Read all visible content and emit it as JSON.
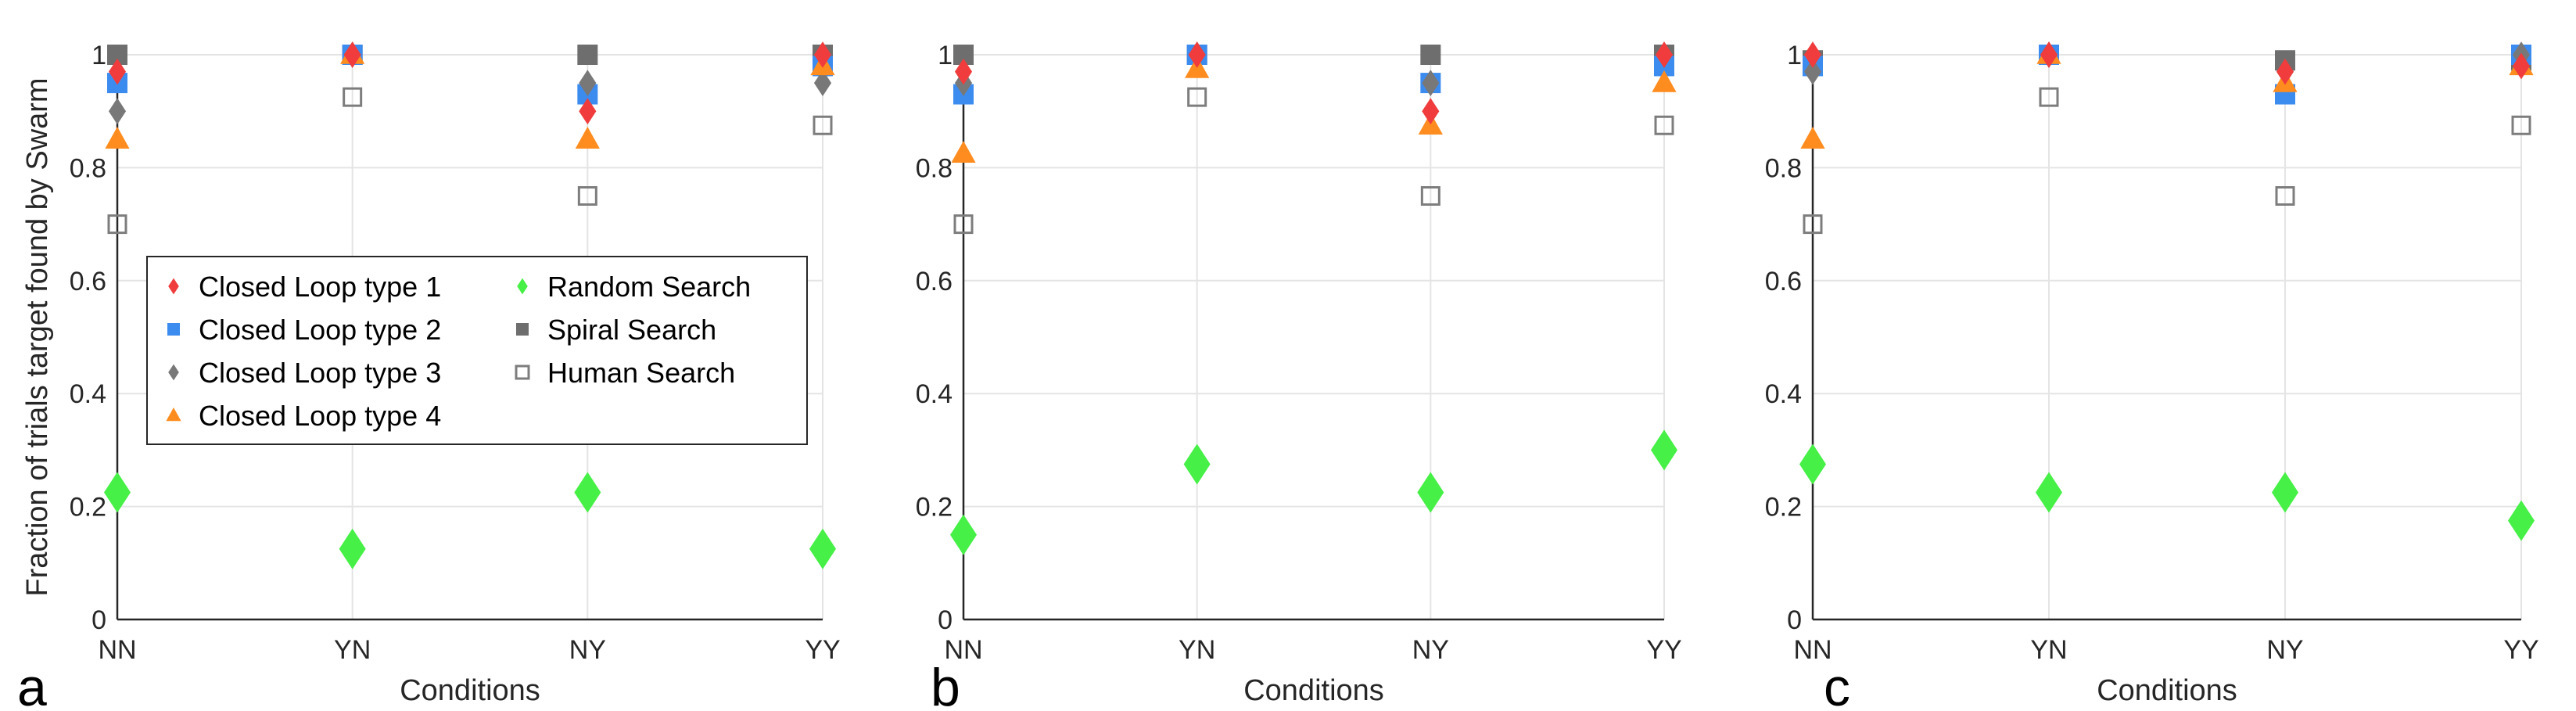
{
  "figure": {
    "ylabel": "Fraction of trials target found by Swarm",
    "xlabel": "Conditions",
    "categories": [
      "NN",
      "YN",
      "NY",
      "YY"
    ],
    "y_ticks": [
      "0",
      "0.2",
      "0.4",
      "0.6",
      "0.8",
      "1"
    ]
  },
  "legend": {
    "placement": "inside panel a, left-middle",
    "entries": [
      {
        "label": "Closed Loop type 1",
        "marker": "diamond",
        "color": "#f03c3c"
      },
      {
        "label": "Closed Loop type 2",
        "marker": "square",
        "color": "#3c8cf0"
      },
      {
        "label": "Closed Loop type 3",
        "marker": "diamond",
        "color": "#787878"
      },
      {
        "label": "Closed Loop type 4",
        "marker": "triangle",
        "color": "#ff8c1e"
      },
      {
        "label": "Random Search",
        "marker": "diamond",
        "color": "#46f046"
      },
      {
        "label": "Spiral Search",
        "marker": "square",
        "color": "#6e6e6e"
      },
      {
        "label": "Human Search",
        "marker": "open-square",
        "color": "#7d7d7d"
      }
    ]
  },
  "chart_data": [
    {
      "type": "scatter",
      "panel": "a",
      "categories": [
        "NN",
        "YN",
        "NY",
        "YY"
      ],
      "ylim": [
        0,
        1
      ],
      "grid": true,
      "series": [
        {
          "name": "Closed Loop type 1",
          "values": [
            0.97,
            1.0,
            0.9,
            1.0
          ]
        },
        {
          "name": "Closed Loop type 2",
          "values": [
            0.95,
            1.0,
            0.93,
            0.98
          ]
        },
        {
          "name": "Closed Loop type 3",
          "values": [
            0.9,
            1.0,
            0.95,
            0.95
          ]
        },
        {
          "name": "Closed Loop type 4",
          "values": [
            0.85,
            1.0,
            0.85,
            0.98
          ]
        },
        {
          "name": "Random Search",
          "values": [
            0.225,
            0.125,
            0.225,
            0.125
          ]
        },
        {
          "name": "Spiral Search",
          "values": [
            1.0,
            1.0,
            1.0,
            1.0
          ]
        },
        {
          "name": "Human Search",
          "values": [
            0.7,
            0.925,
            0.75,
            0.875
          ]
        }
      ]
    },
    {
      "type": "scatter",
      "panel": "b",
      "categories": [
        "NN",
        "YN",
        "NY",
        "YY"
      ],
      "ylim": [
        0,
        1
      ],
      "grid": true,
      "series": [
        {
          "name": "Closed Loop type 1",
          "values": [
            0.97,
            1.0,
            0.9,
            1.0
          ]
        },
        {
          "name": "Closed Loop type 2",
          "values": [
            0.93,
            1.0,
            0.95,
            0.98
          ]
        },
        {
          "name": "Closed Loop type 3",
          "values": [
            0.95,
            1.0,
            0.95,
            1.0
          ]
        },
        {
          "name": "Closed Loop type 4",
          "values": [
            0.825,
            0.975,
            0.875,
            0.95
          ]
        },
        {
          "name": "Random Search",
          "values": [
            0.15,
            0.275,
            0.225,
            0.3
          ]
        },
        {
          "name": "Spiral Search",
          "values": [
            1.0,
            1.0,
            1.0,
            1.0
          ]
        },
        {
          "name": "Human Search",
          "values": [
            0.7,
            0.925,
            0.75,
            0.875
          ]
        }
      ]
    },
    {
      "type": "scatter",
      "panel": "c",
      "categories": [
        "NN",
        "YN",
        "NY",
        "YY"
      ],
      "ylim": [
        0,
        1
      ],
      "grid": true,
      "series": [
        {
          "name": "Closed Loop type 1",
          "values": [
            1.0,
            1.0,
            0.97,
            0.98
          ]
        },
        {
          "name": "Closed Loop type 2",
          "values": [
            0.98,
            1.0,
            0.93,
            1.0
          ]
        },
        {
          "name": "Closed Loop type 3",
          "values": [
            0.97,
            1.0,
            0.97,
            1.0
          ]
        },
        {
          "name": "Closed Loop type 4",
          "values": [
            0.85,
            1.0,
            0.95,
            0.98
          ]
        },
        {
          "name": "Random Search",
          "values": [
            0.275,
            0.225,
            0.225,
            0.175
          ]
        },
        {
          "name": "Spiral Search",
          "values": [
            0.99,
            1.0,
            0.99,
            0.99
          ]
        },
        {
          "name": "Human Search",
          "values": [
            0.7,
            0.925,
            0.75,
            0.875
          ]
        }
      ]
    }
  ]
}
